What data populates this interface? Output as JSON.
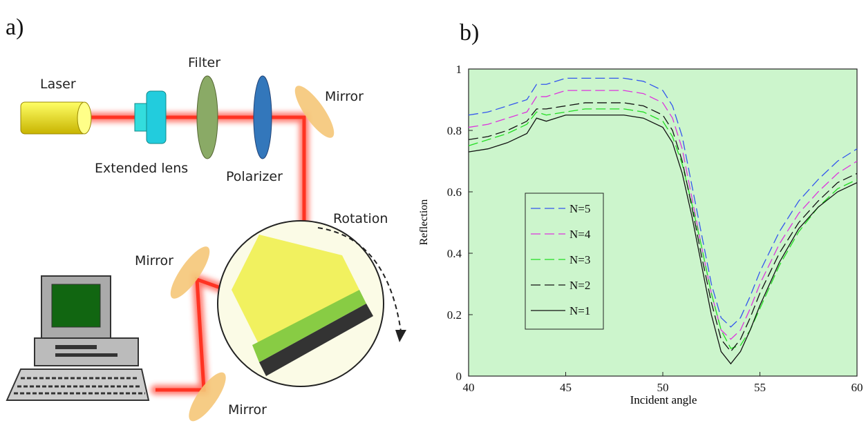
{
  "diagram": {
    "panel_label": "a)",
    "labels": [
      "Laser",
      "Filter",
      "Mirror",
      "Extended lens",
      "Polarizer",
      "Rotation",
      "Mirror",
      "Mirror"
    ]
  },
  "chart_data": {
    "type": "line",
    "panel_label": "b)",
    "x_label": "Incident angle",
    "y_label": "Reflection",
    "x": [
      40,
      41,
      42,
      43,
      43.5,
      44,
      45,
      46,
      47,
      48,
      49,
      50,
      50.5,
      51,
      51.5,
      52,
      52.5,
      53,
      53.5,
      54,
      54.5,
      55,
      56,
      57,
      58,
      59,
      60
    ],
    "series": [
      {
        "name": "N=5",
        "color": "#3355ee",
        "style": "dashed",
        "values": [
          0.85,
          0.86,
          0.88,
          0.9,
          0.95,
          0.95,
          0.97,
          0.97,
          0.97,
          0.97,
          0.96,
          0.93,
          0.88,
          0.78,
          0.62,
          0.46,
          0.3,
          0.19,
          0.16,
          0.19,
          0.26,
          0.34,
          0.47,
          0.57,
          0.64,
          0.7,
          0.74
        ]
      },
      {
        "name": "N=4",
        "color": "#dd33dd",
        "style": "dashed",
        "values": [
          0.81,
          0.82,
          0.84,
          0.86,
          0.91,
          0.91,
          0.93,
          0.93,
          0.93,
          0.93,
          0.92,
          0.89,
          0.84,
          0.74,
          0.58,
          0.42,
          0.27,
          0.15,
          0.12,
          0.15,
          0.22,
          0.3,
          0.43,
          0.53,
          0.6,
          0.66,
          0.7
        ]
      },
      {
        "name": "N=3",
        "color": "#22dd22",
        "style": "dashed",
        "values": [
          0.75,
          0.77,
          0.79,
          0.82,
          0.86,
          0.85,
          0.86,
          0.87,
          0.87,
          0.87,
          0.86,
          0.83,
          0.78,
          0.69,
          0.56,
          0.42,
          0.27,
          0.15,
          0.09,
          0.1,
          0.15,
          0.22,
          0.36,
          0.47,
          0.55,
          0.61,
          0.64
        ]
      },
      {
        "name": "N=2",
        "color": "#111111",
        "style": "dashed",
        "values": [
          0.77,
          0.78,
          0.8,
          0.83,
          0.87,
          0.87,
          0.88,
          0.89,
          0.89,
          0.89,
          0.88,
          0.85,
          0.8,
          0.7,
          0.55,
          0.39,
          0.24,
          0.12,
          0.08,
          0.12,
          0.19,
          0.27,
          0.4,
          0.5,
          0.57,
          0.63,
          0.66
        ]
      },
      {
        "name": "N=1",
        "color": "#111111",
        "style": "solid",
        "values": [
          0.73,
          0.74,
          0.76,
          0.79,
          0.84,
          0.83,
          0.85,
          0.85,
          0.85,
          0.85,
          0.84,
          0.81,
          0.76,
          0.66,
          0.52,
          0.36,
          0.2,
          0.08,
          0.04,
          0.08,
          0.15,
          0.23,
          0.37,
          0.48,
          0.55,
          0.6,
          0.63
        ]
      }
    ],
    "xlim": [
      40,
      60
    ],
    "xticks": [
      40,
      45,
      50,
      55,
      60
    ],
    "ylim": [
      0,
      1
    ],
    "yticks": [
      0,
      0.2,
      0.4,
      0.6,
      0.8,
      1
    ],
    "background": "#ccf5cc",
    "legend": "left"
  }
}
